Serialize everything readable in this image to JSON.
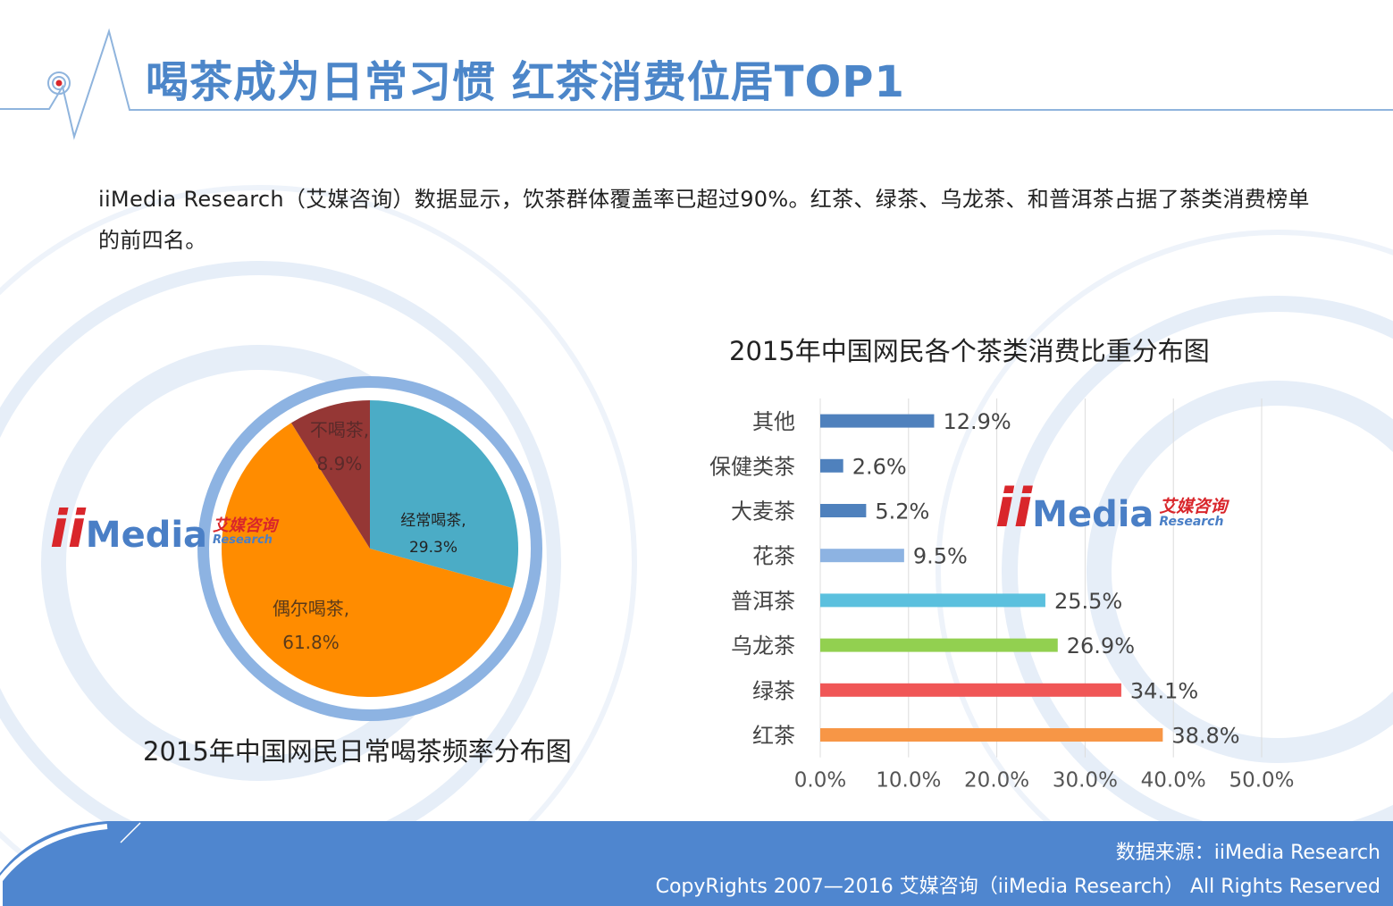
{
  "title": "喝茶成为日常习惯  红茶消费位居TOP1",
  "intro": "iiMedia  Research（艾媒咨询）数据显示，饮茶群体覆盖率已超过90%。红茶、绿茶、乌龙茶、和普洱茶占据了茶类消费榜单的前四名。",
  "logo": {
    "ii": "ii",
    "media": "Media",
    "cn": "艾媒咨询",
    "en": "Research"
  },
  "footer": {
    "source": "数据来源：iiMedia Research",
    "copyright": "CopyRights 2007—2016 艾媒咨询（iiMedia Research） All Rights Reserved"
  },
  "colors": {
    "title_blue": "#4c86c9",
    "footer_blue": "#4f86cf",
    "pie_ring": "#8db3e2"
  },
  "chart_data": [
    {
      "type": "pie",
      "title": "2015年中国网民日常喝茶频率分布图",
      "slices": [
        {
          "label": "经常喝茶,",
          "value": 29.3,
          "value_label": "29.3%",
          "color": "#4bacc6"
        },
        {
          "label": "偶尔喝茶,",
          "value": 61.8,
          "value_label": "61.8%",
          "color": "#ff8c00"
        },
        {
          "label": "不喝茶,",
          "value": 8.9,
          "value_label": "8.9%",
          "color": "#953735"
        }
      ]
    },
    {
      "type": "bar",
      "orientation": "horizontal",
      "title": "2015年中国网民各个茶类消费比重分布图",
      "categories": [
        "其他",
        "保健类茶",
        "大麦茶",
        "花茶",
        "普洱茶",
        "乌龙茶",
        "绿茶",
        "红茶"
      ],
      "values": [
        12.9,
        2.6,
        5.2,
        9.5,
        25.5,
        26.9,
        34.1,
        38.8
      ],
      "value_labels": [
        "12.9%",
        "2.6%",
        "5.2%",
        "9.5%",
        "25.5%",
        "26.9%",
        "34.1%",
        "38.8%"
      ],
      "colors": [
        "#4f81bd",
        "#4f81bd",
        "#4f81bd",
        "#8db3e2",
        "#5bc0de",
        "#92d050",
        "#f05656",
        "#f79646"
      ],
      "xlim": [
        0,
        50
      ],
      "x_ticks": [
        "0.0%",
        "10.0%",
        "20.0%",
        "30.0%",
        "40.0%",
        "50.0%"
      ],
      "grid": true
    }
  ]
}
